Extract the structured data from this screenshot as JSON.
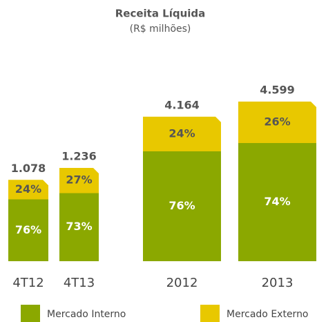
{
  "chart_data": {
    "type": "stacked_percent_bar",
    "title": "Receita Líquida",
    "subtitle": "(R$ milhões)",
    "categories": [
      "4T12",
      "4T13",
      "2012",
      "2013"
    ],
    "series": [
      {
        "name": "Mercado Interno",
        "color": "#8ba800",
        "values": [
          76,
          73,
          76,
          74
        ],
        "value_labels": [
          "76%",
          "73%",
          "76%",
          "74%"
        ]
      },
      {
        "name": "Mercado Externo",
        "color": "#e8c800",
        "values": [
          24,
          27,
          24,
          26
        ],
        "value_labels": [
          "24%",
          "27%",
          "24%",
          "26%"
        ]
      }
    ],
    "totals": {
      "values": [
        1078,
        1236,
        4164,
        4599
      ],
      "value_labels": [
        "1.078",
        "1.236",
        "4.164",
        "4.599"
      ]
    }
  }
}
